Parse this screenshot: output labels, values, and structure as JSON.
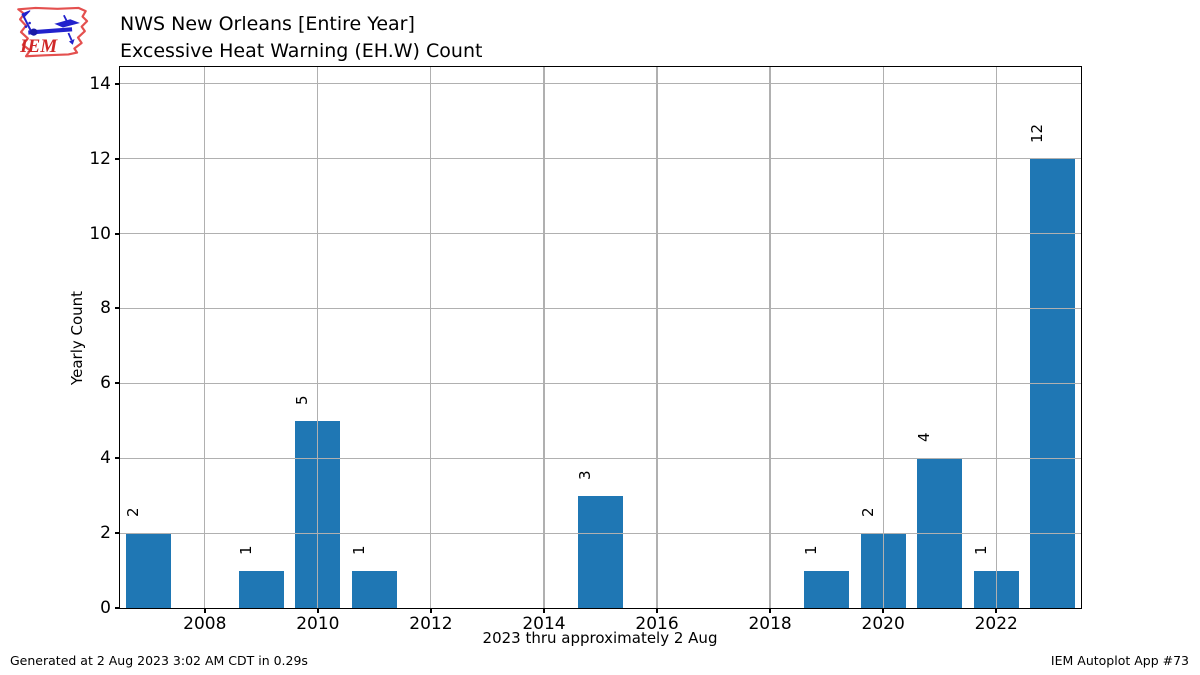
{
  "header": {
    "logo_text": "IEM",
    "title_line1": "NWS New Orleans [Entire Year]",
    "title_line2": "Excessive Heat Warning (EH.W) Count"
  },
  "chart_data": {
    "type": "bar",
    "title": "NWS New Orleans [Entire Year] Excessive Heat Warning (EH.W) Count",
    "xlabel": "2023 thru approximately 2 Aug",
    "ylabel": "Yearly Count",
    "categories": [
      2007,
      2009,
      2010,
      2011,
      2015,
      2019,
      2020,
      2021,
      2022,
      2023
    ],
    "values": [
      2,
      1,
      5,
      1,
      3,
      1,
      2,
      4,
      1,
      12
    ],
    "years_with_no_bar": [
      2008,
      2012,
      2013,
      2014,
      2016,
      2017,
      2018
    ],
    "xticks": [
      2008,
      2010,
      2012,
      2014,
      2016,
      2018,
      2020,
      2022
    ],
    "yticks": [
      0,
      2,
      4,
      6,
      8,
      10,
      12,
      14
    ],
    "xlim": [
      2006.5,
      2023.5
    ],
    "ylim": [
      0,
      14.45
    ],
    "bar_width_years": 0.8,
    "bar_value_labels_rotated_90": true,
    "grid": true,
    "legend": "none",
    "bar_color": "#1f77b4",
    "grid_color": "#b0b0b0",
    "axis_color": "#000000"
  },
  "footer": {
    "generated": "Generated at 2 Aug 2023 3:02 AM CDT in 0.29s",
    "app": "IEM Autoplot App #73"
  }
}
